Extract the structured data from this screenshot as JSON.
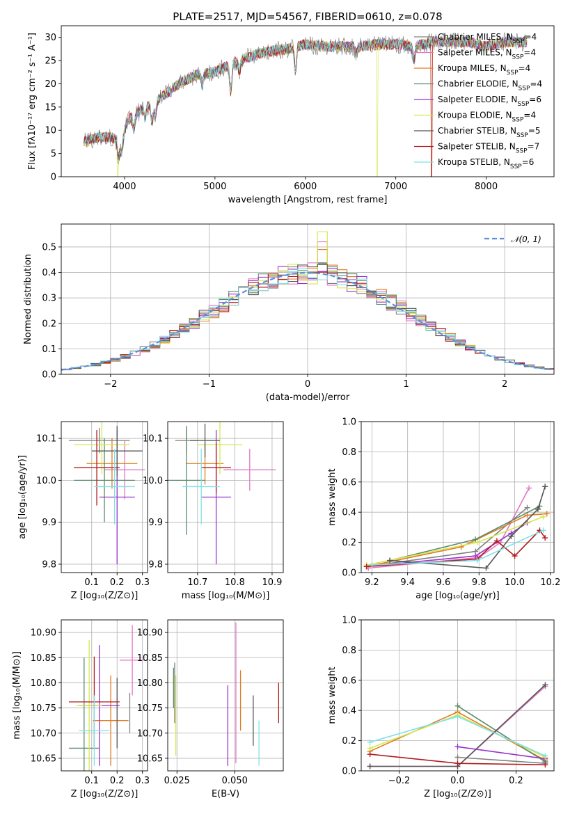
{
  "figure": {
    "title": "PLATE=2517, MJD=54567, FIBERID=0610, z=0.078"
  },
  "colors": {
    "chabrier_miles": "#808080",
    "salpeter_miles": "#e377c2",
    "kroupa_miles": "#e07b21",
    "chabrier_elodie": "#5a8a6a",
    "salpeter_elodie": "#9932cc",
    "kroupa_elodie": "#d4e84e",
    "chabrier_stelib": "#555555",
    "salpeter_stelib": "#b31b1b",
    "kroupa_stelib": "#7fe0e8",
    "normal": "#5b8dd9"
  },
  "chart_data": [
    {
      "id": "spectrum",
      "type": "line",
      "title": "PLATE=2517, MJD=54567, FIBERID=0610, z=0.078",
      "xlabel": "wavelength [Angstrom, rest frame]",
      "ylabel": "Flux [fλ10⁻¹⁷ erg cm⁻² s⁻¹ A⁻¹]",
      "xlim": [
        3300,
        8750
      ],
      "ylim": [
        0,
        32.5
      ],
      "xticks": [
        4000,
        5000,
        6000,
        7000,
        8000
      ],
      "yticks": [
        0,
        5,
        10,
        15,
        20,
        25,
        30
      ],
      "legend_position": "right",
      "series": [
        {
          "name": "Chabrier MILES, N_SSP=4",
          "color_key": "chabrier_miles"
        },
        {
          "name": "Salpeter MILES, N_SSP=4",
          "color_key": "salpeter_miles"
        },
        {
          "name": "Kroupa MILES, N_SSP=4",
          "color_key": "kroupa_miles"
        },
        {
          "name": "Chabrier ELODIE, N_SSP=4",
          "color_key": "chabrier_elodie"
        },
        {
          "name": "Salpeter ELODIE, N_SSP=6",
          "color_key": "salpeter_elodie"
        },
        {
          "name": "Kroupa ELODIE, N_SSP=4",
          "color_key": "kroupa_elodie"
        },
        {
          "name": "Chabrier STELIB, N_SSP=5",
          "color_key": "chabrier_stelib"
        },
        {
          "name": "Salpeter STELIB, N_SSP=7",
          "color_key": "salpeter_stelib"
        },
        {
          "name": "Kroupa STELIB, N_SSP=6",
          "color_key": "kroupa_stelib"
        }
      ],
      "continuum": [
        [
          3550,
          7.5
        ],
        [
          3700,
          8.5
        ],
        [
          3850,
          8.5
        ],
        [
          3950,
          7.5
        ],
        [
          4050,
          12.5
        ],
        [
          4200,
          14.5
        ],
        [
          4400,
          17
        ],
        [
          4600,
          20
        ],
        [
          4800,
          22
        ],
        [
          5000,
          22.5
        ],
        [
          5200,
          24.5
        ],
        [
          5400,
          26
        ],
        [
          5600,
          27
        ],
        [
          5800,
          27.5
        ],
        [
          6000,
          28.5
        ],
        [
          6200,
          28
        ],
        [
          6400,
          28
        ],
        [
          6600,
          28
        ],
        [
          6800,
          28.5
        ],
        [
          7000,
          28.5
        ],
        [
          7200,
          28
        ],
        [
          7400,
          29
        ],
        [
          7600,
          29
        ],
        [
          7800,
          29
        ],
        [
          8000,
          28
        ],
        [
          8200,
          29
        ],
        [
          8450,
          29
        ]
      ],
      "dips": [
        [
          3934,
          3.5
        ],
        [
          3969,
          3
        ],
        [
          4101,
          3
        ],
        [
          4226,
          2
        ],
        [
          4304,
          4
        ],
        [
          4340,
          3
        ],
        [
          4861,
          2.5
        ],
        [
          5175,
          6
        ],
        [
          5270,
          2.5
        ],
        [
          5890,
          5
        ],
        [
          6563,
          1.5
        ],
        [
          7200,
          3
        ]
      ]
    },
    {
      "id": "residuals",
      "type": "area",
      "xlabel": "(data-model)/error",
      "ylabel": "Normed distribution",
      "xlim": [
        -2.5,
        2.5
      ],
      "ylim": [
        0,
        0.59
      ],
      "xticks": [
        -2,
        -1,
        0,
        1,
        2
      ],
      "yticks": [
        0.0,
        0.1,
        0.2,
        0.3,
        0.4,
        0.5
      ],
      "grid": true,
      "legend": "𝒩(0, 1)",
      "legend_position": "upper right",
      "bin_width": 0.1,
      "peak_values": {
        "kroupa_elodie": 0.56,
        "salpeter_miles": 0.52,
        "kroupa_miles": 0.49
      }
    },
    {
      "id": "age_vs_Z",
      "type": "scatter",
      "xlabel": "Z [log₁₀(Z/Z⊙)]",
      "ylabel": "age  [log₁₀(age/yr)]",
      "xlim": [
        -0.02,
        0.32
      ],
      "ylim": [
        9.78,
        10.14
      ],
      "xticks": [
        0.1,
        0.2,
        0.3
      ],
      "yticks": [
        9.8,
        9.9,
        10.0,
        10.1
      ],
      "grid": true,
      "points": [
        {
          "k": "chabrier_miles",
          "x": 0.13,
          "xe": 0.12,
          "y": 10.095,
          "ye": 0.03
        },
        {
          "k": "salpeter_miles",
          "x": 0.23,
          "xe": 0.08,
          "y": 10.025,
          "ye": 0.07
        },
        {
          "k": "kroupa_miles",
          "x": 0.18,
          "xe": 0.1,
          "y": 10.04,
          "ye": 0.06
        },
        {
          "k": "chabrier_elodie",
          "x": 0.15,
          "xe": 0.12,
          "y": 10.0,
          "ye": 0.1
        },
        {
          "k": "salpeter_elodie",
          "x": 0.2,
          "xe": 0.07,
          "y": 9.96,
          "ye": 0.16
        },
        {
          "k": "kroupa_elodie",
          "x": 0.14,
          "xe": 0.11,
          "y": 10.085,
          "ye": 0.07
        },
        {
          "k": "chabrier_stelib",
          "x": 0.2,
          "xe": 0.1,
          "y": 10.07,
          "ye": 0.06
        },
        {
          "k": "salpeter_stelib",
          "x": 0.12,
          "xe": 0.09,
          "y": 10.03,
          "ye": 0.09
        },
        {
          "k": "kroupa_stelib",
          "x": 0.19,
          "xe": 0.08,
          "y": 9.985,
          "ye": 0.09
        }
      ]
    },
    {
      "id": "age_vs_mass",
      "type": "scatter",
      "xlabel": "mass [log₁₀(M/M⊙)]",
      "ylabel": "",
      "xlim": [
        10.62,
        10.93
      ],
      "ylim": [
        9.78,
        10.14
      ],
      "xticks": [
        10.7,
        10.8,
        10.9
      ],
      "yticks": [
        9.8,
        9.9,
        10.0,
        10.1
      ],
      "grid": true,
      "points": [
        {
          "k": "chabrier_miles",
          "x": 10.67,
          "xe": 0.03,
          "y": 10.095,
          "ye": 0.03
        },
        {
          "k": "salpeter_miles",
          "x": 10.84,
          "xe": 0.07,
          "y": 10.025,
          "ye": 0.05
        },
        {
          "k": "kroupa_miles",
          "x": 10.72,
          "xe": 0.05,
          "y": 10.04,
          "ye": 0.05
        },
        {
          "k": "chabrier_elodie",
          "x": 10.67,
          "xe": 0.05,
          "y": 10.0,
          "ye": 0.13
        },
        {
          "k": "salpeter_elodie",
          "x": 10.75,
          "xe": 0.04,
          "y": 9.96,
          "ye": 0.16
        },
        {
          "k": "kroupa_elodie",
          "x": 10.76,
          "xe": 0.06,
          "y": 10.085,
          "ye": 0.07
        },
        {
          "k": "chabrier_stelib",
          "x": 10.72,
          "xe": 0.04,
          "y": 10.095,
          "ye": 0.04
        },
        {
          "k": "salpeter_stelib",
          "x": 10.75,
          "xe": 0.04,
          "y": 10.03,
          "ye": 0.06
        },
        {
          "k": "kroupa_stelib",
          "x": 10.71,
          "xe": 0.05,
          "y": 9.985,
          "ye": 0.09
        }
      ]
    },
    {
      "id": "weights_vs_age",
      "type": "line",
      "xlabel": "age  [log₁₀(age/yr)]",
      "ylabel": "mass weight",
      "xlim": [
        9.14,
        10.22
      ],
      "ylim": [
        0.0,
        1.0
      ],
      "xticks": [
        9.2,
        9.4,
        9.6,
        9.8,
        10.0,
        10.2
      ],
      "yticks": [
        0.0,
        0.2,
        0.4,
        0.6,
        0.8,
        1.0
      ],
      "grid": true,
      "series": [
        {
          "k": "chabrier_miles",
          "x": [
            9.17,
            9.78,
            10.07
          ],
          "y": [
            0.04,
            0.14,
            0.43
          ]
        },
        {
          "k": "salpeter_miles",
          "x": [
            9.18,
            9.8,
            9.92,
            10.08
          ],
          "y": [
            0.03,
            0.1,
            0.2,
            0.56
          ]
        },
        {
          "k": "kroupa_miles",
          "x": [
            9.17,
            9.7,
            10.07,
            10.18
          ],
          "y": [
            0.04,
            0.17,
            0.38,
            0.39
          ]
        },
        {
          "k": "chabrier_elodie",
          "x": [
            9.3,
            9.78,
            10.14
          ],
          "y": [
            0.08,
            0.22,
            0.44
          ]
        },
        {
          "k": "salpeter_elodie",
          "x": [
            9.17,
            9.78,
            9.98,
            10.07
          ],
          "y": [
            0.04,
            0.11,
            0.26,
            0.33
          ]
        },
        {
          "k": "kroupa_elodie",
          "x": [
            9.17,
            9.79,
            10.16
          ],
          "y": [
            0.05,
            0.2,
            0.37
          ]
        },
        {
          "k": "chabrier_stelib",
          "x": [
            9.3,
            9.84,
            9.98,
            10.13,
            10.17
          ],
          "y": [
            0.08,
            0.03,
            0.24,
            0.42,
            0.57
          ]
        },
        {
          "k": "salpeter_stelib",
          "x": [
            9.17,
            9.79,
            9.9,
            10.0,
            10.14,
            10.17
          ],
          "y": [
            0.04,
            0.09,
            0.21,
            0.11,
            0.28,
            0.23
          ]
        },
        {
          "k": "kroupa_stelib",
          "x": [
            9.2,
            9.79,
            10.16
          ],
          "y": [
            0.05,
            0.08,
            0.28
          ]
        }
      ]
    },
    {
      "id": "mass_vs_Z",
      "type": "scatter",
      "xlabel": "Z [log₁₀(Z/Z⊙)]",
      "ylabel": "mass [log₁₀(M/M⊙)]",
      "xlim": [
        -0.02,
        0.32
      ],
      "ylim": [
        10.625,
        10.925
      ],
      "xticks": [
        0.1,
        0.2,
        0.3
      ],
      "yticks": [
        10.65,
        10.7,
        10.75,
        10.8,
        10.85,
        10.9
      ],
      "grid": true,
      "points": [
        {
          "k": "chabrier_miles",
          "x": 0.25,
          "xe": 0.0,
          "y": 10.74,
          "ye": 0.04
        },
        {
          "k": "salpeter_miles",
          "x": 0.26,
          "xe": 0.05,
          "y": 10.845,
          "ye": 0.07
        },
        {
          "k": "kroupa_miles",
          "x": 0.175,
          "xe": 0.07,
          "y": 10.725,
          "ye": 0.09
        },
        {
          "k": "chabrier_elodie",
          "x": 0.07,
          "xe": 0.06,
          "y": 10.67,
          "ye": 0.18
        },
        {
          "k": "salpeter_elodie",
          "x": 0.13,
          "xe": 0.08,
          "y": 10.755,
          "ye": 0.12
        },
        {
          "k": "kroupa_elodie",
          "x": 0.09,
          "xe": 0.05,
          "y": 10.755,
          "ye": 0.13
        },
        {
          "k": "chabrier_stelib",
          "x": 0.2,
          "xe": 0.0,
          "y": 10.74,
          "ye": 0.07
        },
        {
          "k": "salpeter_stelib",
          "x": 0.11,
          "xe": 0.1,
          "y": 10.762,
          "ye": 0.09
        },
        {
          "k": "kroupa_stelib",
          "x": 0.11,
          "xe": 0.06,
          "y": 10.705,
          "ye": 0.07
        }
      ]
    },
    {
      "id": "mass_vs_ebv",
      "type": "scatter",
      "xlabel": "E(B-V)",
      "ylabel": "",
      "xlim": [
        0.021,
        0.071
      ],
      "ylim": [
        10.625,
        10.925
      ],
      "xticks": [
        0.025,
        0.05
      ],
      "xticklabels": [
        "0.025",
        "0.050"
      ],
      "yticks": [
        10.65,
        10.7,
        10.75,
        10.8,
        10.85,
        10.9
      ],
      "grid": true,
      "points": [
        {
          "k": "chabrier_miles",
          "x": 0.024,
          "ye": 0.06,
          "y": 10.78
        },
        {
          "k": "salpeter_miles",
          "x": 0.0505,
          "ye": 0.14,
          "y": 10.78
        },
        {
          "k": "kroupa_miles",
          "x": 0.0525,
          "ye": 0.06,
          "y": 10.765
        },
        {
          "k": "chabrier_elodie",
          "x": 0.0235,
          "ye": 0.04,
          "y": 10.79
        },
        {
          "k": "salpeter_elodie",
          "x": 0.047,
          "ye": 0.08,
          "y": 10.715
        },
        {
          "k": "kroupa_elodie",
          "x": 0.0245,
          "ye": 0.08,
          "y": 10.735
        },
        {
          "k": "chabrier_stelib",
          "x": 0.058,
          "ye": 0.05,
          "y": 10.725
        },
        {
          "k": "salpeter_stelib",
          "x": 0.069,
          "ye": 0.04,
          "y": 10.76
        },
        {
          "k": "kroupa_stelib",
          "x": 0.0605,
          "ye": 0.045,
          "y": 10.68
        }
      ]
    },
    {
      "id": "weights_vs_Z",
      "type": "line",
      "xlabel": "Z [log₁₀(Z/Z⊙)]",
      "ylabel": "mass weight",
      "xlim": [
        -0.33,
        0.33
      ],
      "ylim": [
        0.0,
        1.0
      ],
      "xticks": [
        -0.2,
        0.0,
        0.2
      ],
      "xticklabels": [
        "−0.2",
        "0.0",
        "0.2"
      ],
      "yticks": [
        0.0,
        0.2,
        0.4,
        0.6,
        0.8,
        1.0
      ],
      "grid": true,
      "series": [
        {
          "k": "chabrier_miles",
          "x": [
            0.0,
            0.3
          ],
          "y": [
            0.09,
            0.05
          ]
        },
        {
          "k": "salpeter_miles",
          "x": [
            -0.3,
            0.0,
            0.3
          ],
          "y": [
            0.03,
            0.03,
            0.56
          ]
        },
        {
          "k": "kroupa_miles",
          "x": [
            -0.3,
            0.0,
            0.3
          ],
          "y": [
            0.13,
            0.39,
            0.07
          ]
        },
        {
          "k": "chabrier_elodie",
          "x": [
            0.0,
            0.3
          ],
          "y": [
            0.43,
            0.06
          ]
        },
        {
          "k": "salpeter_elodie",
          "x": [
            0.0,
            0.3
          ],
          "y": [
            0.16,
            0.08
          ]
        },
        {
          "k": "kroupa_elodie",
          "x": [
            -0.3,
            0.0,
            0.3
          ],
          "y": [
            0.15,
            0.37,
            0.09
          ]
        },
        {
          "k": "chabrier_stelib",
          "x": [
            -0.3,
            0.0,
            0.3
          ],
          "y": [
            0.03,
            0.03,
            0.57
          ]
        },
        {
          "k": "salpeter_stelib",
          "x": [
            -0.3,
            0.0,
            0.3
          ],
          "y": [
            0.11,
            0.05,
            0.04
          ]
        },
        {
          "k": "kroupa_stelib",
          "x": [
            -0.3,
            0.0,
            0.3
          ],
          "y": [
            0.19,
            0.36,
            0.1
          ]
        }
      ]
    }
  ]
}
